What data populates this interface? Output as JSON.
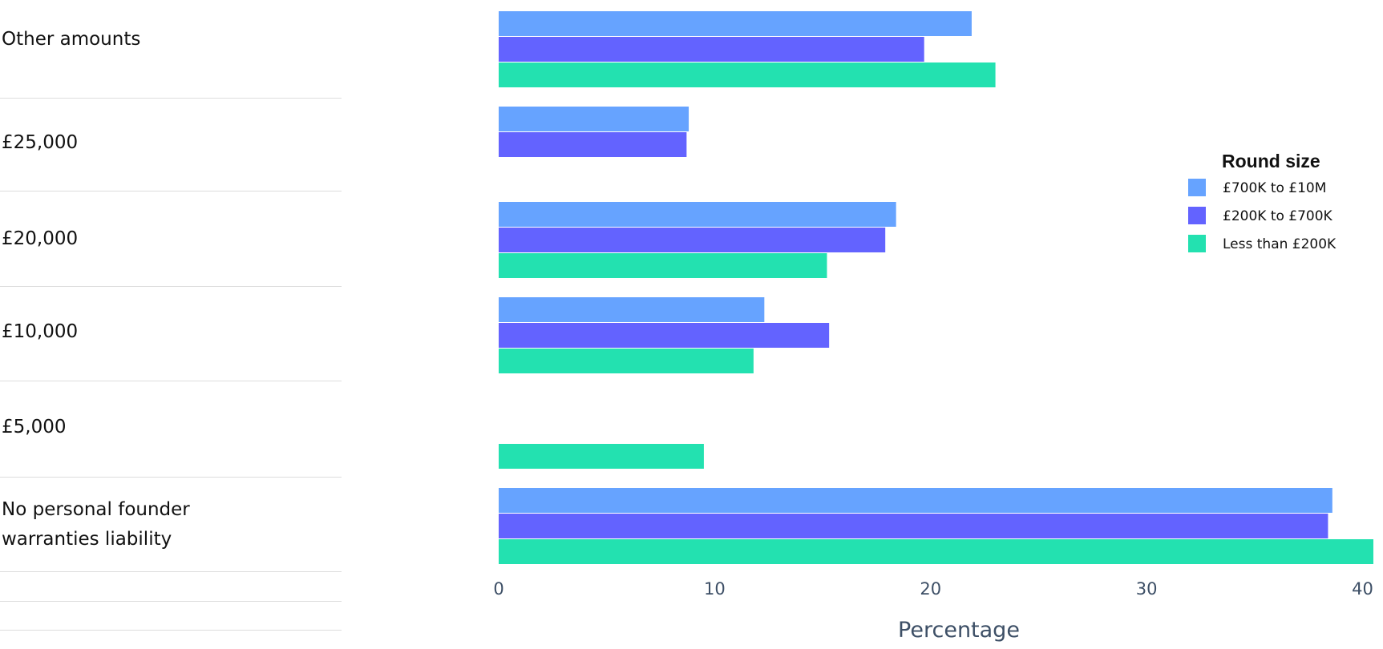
{
  "chart_data": {
    "type": "bar",
    "orientation": "horizontal",
    "categories": [
      "Other amounts",
      "£25,000",
      "£20,000",
      "£10,000",
      "£5,000",
      "No personal founder warranties liability"
    ],
    "series": [
      {
        "name": "£700K to £10M",
        "color": "#66a3ff",
        "values": [
          21.9,
          8.8,
          18.4,
          12.3,
          null,
          38.6
        ]
      },
      {
        "name": "£200K to £700K",
        "color": "#6363ff",
        "values": [
          19.7,
          8.7,
          17.9,
          15.3,
          null,
          38.4
        ]
      },
      {
        "name": "Less than £200K",
        "color": "#23e1b0",
        "values": [
          23.0,
          null,
          15.2,
          11.8,
          9.5,
          40.5
        ]
      }
    ],
    "xlabel": "Percentage",
    "ylabel": "",
    "xlim": [
      0,
      40.5
    ],
    "xticks": [
      "0",
      "10",
      "20",
      "30",
      "40"
    ],
    "grid": false,
    "legend": {
      "title": "Round size",
      "position": "right"
    }
  }
}
